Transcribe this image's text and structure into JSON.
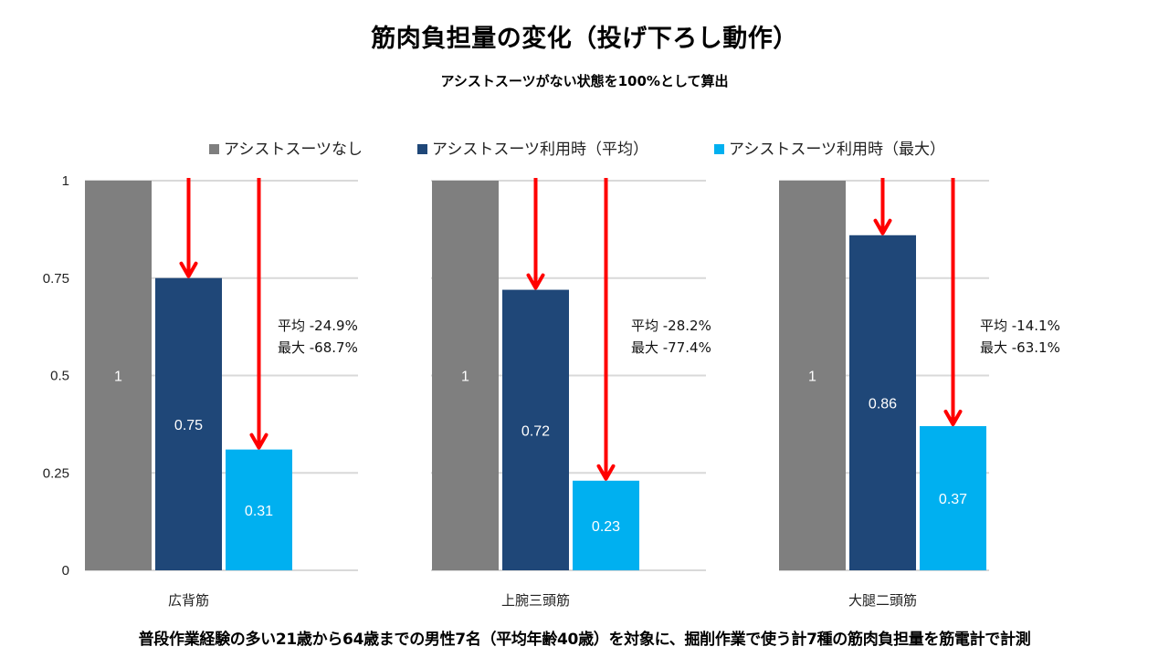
{
  "chart_data": {
    "type": "bar",
    "title": "筋肉負担量の変化（投げ下ろし動作）",
    "subtitle": "アシストスーツがない状態を100%として算出",
    "xlabel": "",
    "ylabel": "",
    "ylim": [
      0,
      1
    ],
    "yticks": [
      0,
      0.25,
      0.5,
      0.75,
      1
    ],
    "ytick_labels": [
      "0",
      "0.25",
      "0.5",
      "0.75",
      "1"
    ],
    "grid": true,
    "legend_position": "top-center",
    "categories": [
      "広背筋",
      "上腕三頭筋",
      "大腿二頭筋"
    ],
    "series": [
      {
        "name": "アシストスーツなし",
        "color": "#7f7f7f",
        "values": [
          1,
          1,
          1
        ],
        "labels": [
          "1",
          "1",
          "1"
        ]
      },
      {
        "name": "アシストスーツ利用時（平均）",
        "color": "#1f4778",
        "values": [
          0.75,
          0.72,
          0.86
        ],
        "labels": [
          "0.75",
          "0.72",
          "0.86"
        ]
      },
      {
        "name": "アシストスーツ利用時（最大）",
        "color": "#00b0f0",
        "values": [
          0.31,
          0.23,
          0.37
        ],
        "labels": [
          "0.31",
          "0.23",
          "0.37"
        ]
      }
    ],
    "annotations": [
      {
        "category": "広背筋",
        "average": "平均 -24.9%",
        "max": "最大 -68.7%"
      },
      {
        "category": "上腕三頭筋",
        "average": "平均 -28.2%",
        "max": "最大 -77.4%"
      },
      {
        "category": "大腿二頭筋",
        "average": "平均 -14.1%",
        "max": "最大 -63.1%"
      }
    ],
    "arrow_color": "#ff0000"
  },
  "footnote": "普段作業経験の多い21歳から64歳までの男性7名（平均年齢40歳）を対象に、掘削作業で使う計7種の筋肉負担量を筋電計で計測"
}
